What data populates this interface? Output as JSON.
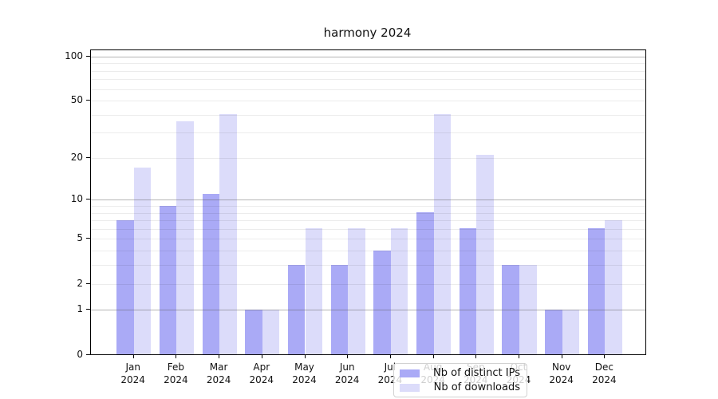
{
  "chart_data": {
    "type": "bar",
    "title": "harmony 2024",
    "categories": [
      [
        "Jan",
        "2024"
      ],
      [
        "Feb",
        "2024"
      ],
      [
        "Mar",
        "2024"
      ],
      [
        "Apr",
        "2024"
      ],
      [
        "May",
        "2024"
      ],
      [
        "Jun",
        "2024"
      ],
      [
        "Jul",
        "2024"
      ],
      [
        "Aug",
        "2024"
      ],
      [
        "Sep",
        "2024"
      ],
      [
        "Oct",
        "2024"
      ],
      [
        "Nov",
        "2024"
      ],
      [
        "Dec",
        "2024"
      ]
    ],
    "series": [
      {
        "name": "Nb of distinct IPs",
        "color": "#aaaaf6",
        "values": [
          7,
          9,
          11,
          1,
          3,
          3,
          4,
          8,
          6,
          3,
          1,
          6
        ]
      },
      {
        "name": "Nb of downloads",
        "color": "#dcdcfa",
        "values": [
          17,
          36,
          40,
          1,
          6,
          6,
          6,
          40,
          21,
          3,
          1,
          7
        ]
      }
    ],
    "xlabel": "",
    "ylabel": "",
    "yscale": "log1p",
    "ylim": [
      0,
      115
    ],
    "yticks": [
      0,
      1,
      2,
      5,
      10,
      20,
      50,
      100
    ],
    "gridlines": {
      "major": [
        1,
        10,
        100
      ],
      "minor": [
        2,
        3,
        4,
        5,
        6,
        7,
        8,
        9,
        20,
        30,
        40,
        50,
        60,
        70,
        80,
        90
      ]
    },
    "grid": "horizontal",
    "legend_position": "inside lower center"
  }
}
